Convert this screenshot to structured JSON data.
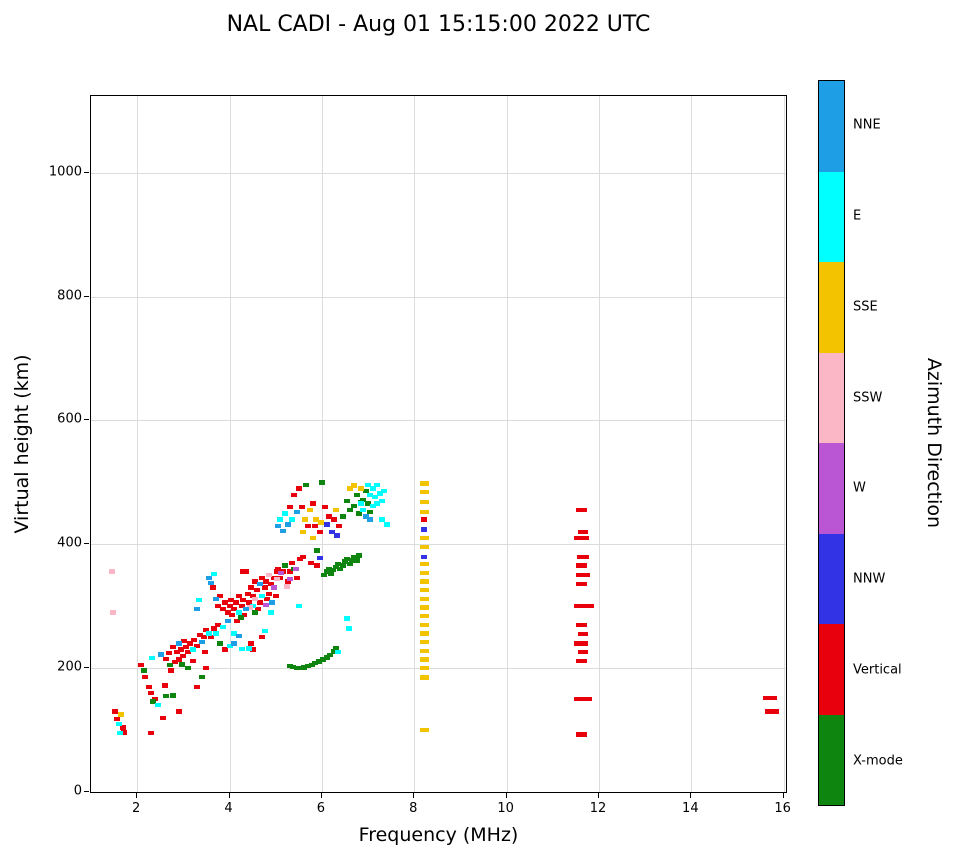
{
  "title": "NAL CADI - Aug 01 15:15:00 2022 UTC",
  "chart_data": {
    "type": "scatter",
    "title": "NAL CADI - Aug 01 15:15:00 2022 UTC",
    "xlabel": "Frequency (MHz)",
    "ylabel": "Virtual height (km)",
    "colorbar_label": "Azimuth Direction",
    "xlim": [
      1.0,
      16.05
    ],
    "ylim": [
      0,
      1124
    ],
    "xticks": [
      2,
      4,
      6,
      8,
      10,
      12,
      14,
      16
    ],
    "yticks": [
      0,
      200,
      400,
      600,
      800,
      1000
    ],
    "grid": true,
    "legend_position": "right-colorbar",
    "marker": {
      "w": 0.13,
      "h": 7
    },
    "categories": [
      {
        "name": "NNE",
        "color": "#1E9EE5"
      },
      {
        "name": "E",
        "color": "#00FFFF"
      },
      {
        "name": "SSE",
        "color": "#F3C300"
      },
      {
        "name": "SSW",
        "color": "#FBB7C5"
      },
      {
        "name": "W",
        "color": "#BA55D3"
      },
      {
        "name": "NNW",
        "color": "#3333E6"
      },
      {
        "name": "Vertical",
        "color": "#E8000D"
      },
      {
        "name": "X-mode",
        "color": "#0E850E"
      }
    ],
    "series": [
      {
        "name": "Vertical",
        "points": [
          [
            1.52,
            130
          ],
          [
            1.56,
            118
          ],
          [
            1.7,
            104
          ],
          [
            1.72,
            96
          ],
          [
            2.08,
            205
          ],
          [
            2.18,
            186
          ],
          [
            2.26,
            170
          ],
          [
            2.3,
            160
          ],
          [
            2.3,
            95
          ],
          [
            2.38,
            150
          ],
          [
            2.55,
            120
          ],
          [
            2.6,
            172
          ],
          [
            2.62,
            215
          ],
          [
            2.68,
            224
          ],
          [
            2.74,
            196
          ],
          [
            2.78,
            234
          ],
          [
            2.82,
            210
          ],
          [
            2.86,
            226
          ],
          [
            2.9,
            214
          ],
          [
            2.9,
            130
          ],
          [
            2.95,
            230
          ],
          [
            3.0,
            220
          ],
          [
            3.02,
            244
          ],
          [
            3.06,
            234
          ],
          [
            3.1,
            226
          ],
          [
            3.14,
            240
          ],
          [
            3.2,
            212
          ],
          [
            3.24,
            246
          ],
          [
            3.3,
            236
          ],
          [
            3.3,
            170
          ],
          [
            3.36,
            254
          ],
          [
            3.44,
            250
          ],
          [
            3.46,
            226
          ],
          [
            3.5,
            262
          ],
          [
            3.5,
            200
          ],
          [
            3.6,
            250
          ],
          [
            3.64,
            330
          ],
          [
            3.66,
            264
          ],
          [
            3.74,
            300
          ],
          [
            3.76,
            270
          ],
          [
            3.8,
            316
          ],
          [
            3.86,
            296
          ],
          [
            3.9,
            306
          ],
          [
            3.9,
            230
          ],
          [
            3.96,
            290
          ],
          [
            4.0,
            300
          ],
          [
            4.04,
            310
          ],
          [
            4.06,
            286
          ],
          [
            4.1,
            296
          ],
          [
            4.14,
            306
          ],
          [
            4.16,
            276
          ],
          [
            4.2,
            316
          ],
          [
            4.26,
            300
          ],
          [
            4.3,
            310
          ],
          [
            4.3,
            356
          ],
          [
            4.32,
            286
          ],
          [
            4.36,
            356
          ],
          [
            4.4,
            320
          ],
          [
            4.42,
            306
          ],
          [
            4.46,
            330
          ],
          [
            4.46,
            240
          ],
          [
            4.5,
            316
          ],
          [
            4.5,
            230
          ],
          [
            4.56,
            340
          ],
          [
            4.6,
            326
          ],
          [
            4.62,
            296
          ],
          [
            4.66,
            306
          ],
          [
            4.7,
            346
          ],
          [
            4.7,
            250
          ],
          [
            4.76,
            330
          ],
          [
            4.8,
            340
          ],
          [
            4.82,
            312
          ],
          [
            4.86,
            320
          ],
          [
            4.9,
            336
          ],
          [
            4.96,
            346
          ],
          [
            5.0,
            316
          ],
          [
            5.02,
            356
          ],
          [
            5.06,
            360
          ],
          [
            5.1,
            346
          ],
          [
            5.16,
            356
          ],
          [
            5.26,
            340
          ],
          [
            5.3,
            460
          ],
          [
            5.32,
            356
          ],
          [
            5.36,
            370
          ],
          [
            5.4,
            480
          ],
          [
            5.46,
            346
          ],
          [
            5.5,
            490
          ],
          [
            5.52,
            376
          ],
          [
            5.56,
            460
          ],
          [
            5.6,
            380
          ],
          [
            5.7,
            430
          ],
          [
            5.76,
            370
          ],
          [
            5.8,
            466
          ],
          [
            5.86,
            430
          ],
          [
            5.9,
            366
          ],
          [
            5.96,
            420
          ],
          [
            6.06,
            460
          ],
          [
            6.16,
            445
          ],
          [
            6.26,
            440
          ],
          [
            6.36,
            430
          ],
          [
            8.22,
            440
          ],
          [
            11.62,
            93,
            0.22
          ],
          [
            11.65,
            150,
            0.38
          ],
          [
            11.62,
            212,
            0.25
          ],
          [
            11.65,
            226,
            0.22
          ],
          [
            11.62,
            240,
            0.3
          ],
          [
            11.65,
            255,
            0.22
          ],
          [
            11.62,
            270,
            0.25
          ],
          [
            11.68,
            300,
            0.42
          ],
          [
            11.62,
            336,
            0.25
          ],
          [
            11.65,
            350,
            0.3
          ],
          [
            11.62,
            366,
            0.22
          ],
          [
            11.65,
            380,
            0.25
          ],
          [
            11.62,
            410,
            0.32
          ],
          [
            11.66,
            420,
            0.22
          ],
          [
            11.62,
            455,
            0.22
          ],
          [
            15.7,
            152,
            0.3
          ],
          [
            15.75,
            130,
            0.3
          ]
        ]
      },
      {
        "name": "X-mode",
        "points": [
          [
            2.14,
            196
          ],
          [
            2.34,
            146
          ],
          [
            2.62,
            155
          ],
          [
            2.72,
            205
          ],
          [
            2.78,
            156
          ],
          [
            2.96,
            206
          ],
          [
            3.1,
            200
          ],
          [
            3.4,
            186
          ],
          [
            3.8,
            240
          ],
          [
            4.24,
            282
          ],
          [
            4.56,
            290
          ],
          [
            5.2,
            366
          ],
          [
            5.4,
            360
          ],
          [
            5.3,
            204
          ],
          [
            5.38,
            202
          ],
          [
            5.46,
            200
          ],
          [
            5.54,
            200
          ],
          [
            5.62,
            201
          ],
          [
            5.7,
            203
          ],
          [
            5.78,
            205
          ],
          [
            5.86,
            208
          ],
          [
            5.94,
            211
          ],
          [
            6.02,
            214
          ],
          [
            6.1,
            217
          ],
          [
            6.18,
            221
          ],
          [
            6.26,
            227
          ],
          [
            6.3,
            233
          ],
          [
            6.05,
            350
          ],
          [
            6.1,
            356
          ],
          [
            6.15,
            360
          ],
          [
            6.2,
            352
          ],
          [
            6.25,
            358
          ],
          [
            6.3,
            363
          ],
          [
            6.35,
            368
          ],
          [
            6.4,
            360
          ],
          [
            6.45,
            366
          ],
          [
            6.5,
            372
          ],
          [
            6.55,
            376
          ],
          [
            6.6,
            368
          ],
          [
            6.65,
            374
          ],
          [
            6.7,
            380
          ],
          [
            6.75,
            374
          ],
          [
            6.8,
            382
          ],
          [
            5.65,
            496
          ],
          [
            5.9,
            390
          ],
          [
            6.0,
            500
          ],
          [
            6.45,
            445
          ],
          [
            6.55,
            470
          ],
          [
            6.6,
            455
          ],
          [
            6.7,
            462
          ],
          [
            6.75,
            480
          ],
          [
            6.8,
            450
          ],
          [
            6.85,
            468
          ],
          [
            6.9,
            472
          ],
          [
            6.95,
            486
          ],
          [
            7.0,
            466
          ],
          [
            7.05,
            452
          ]
        ]
      },
      {
        "name": "E",
        "points": [
          [
            1.6,
            110
          ],
          [
            1.62,
            95
          ],
          [
            2.32,
            216
          ],
          [
            2.45,
            140
          ],
          [
            3.2,
            230
          ],
          [
            3.34,
            310
          ],
          [
            3.56,
            256
          ],
          [
            3.66,
            352
          ],
          [
            3.7,
            256
          ],
          [
            3.86,
            266
          ],
          [
            4.0,
            236
          ],
          [
            4.1,
            256
          ],
          [
            4.2,
            290
          ],
          [
            4.26,
            231
          ],
          [
            4.42,
            232
          ],
          [
            4.5,
            300
          ],
          [
            4.7,
            316
          ],
          [
            4.76,
            260
          ],
          [
            4.9,
            290
          ],
          [
            5.1,
            440
          ],
          [
            5.2,
            450
          ],
          [
            5.35,
            440
          ],
          [
            5.5,
            300
          ],
          [
            6.35,
            226
          ],
          [
            6.55,
            280
          ],
          [
            6.58,
            264
          ],
          [
            6.85,
            466
          ],
          [
            6.9,
            455
          ],
          [
            7.0,
            496
          ],
          [
            7.05,
            480
          ],
          [
            7.1,
            490
          ],
          [
            7.1,
            462
          ],
          [
            7.15,
            476
          ],
          [
            7.2,
            466
          ],
          [
            7.2,
            496
          ],
          [
            7.25,
            482
          ],
          [
            7.3,
            470
          ],
          [
            7.3,
            440
          ],
          [
            7.35,
            486
          ],
          [
            7.4,
            432
          ]
        ]
      },
      {
        "name": "SSE",
        "points": [
          [
            1.66,
            125
          ],
          [
            5.58,
            420
          ],
          [
            5.64,
            440
          ],
          [
            5.74,
            455
          ],
          [
            5.8,
            410
          ],
          [
            5.88,
            440
          ],
          [
            5.98,
            435
          ],
          [
            6.3,
            455
          ],
          [
            6.6,
            490
          ],
          [
            6.7,
            495
          ],
          [
            6.85,
            490
          ],
          [
            8.22,
            100,
            0.2
          ],
          [
            8.22,
            185,
            0.2
          ],
          [
            8.22,
            200,
            0.2
          ],
          [
            8.22,
            214,
            0.2
          ],
          [
            8.22,
            228,
            0.2
          ],
          [
            8.22,
            242,
            0.2
          ],
          [
            8.22,
            256,
            0.2
          ],
          [
            8.22,
            270,
            0.2
          ],
          [
            8.22,
            284,
            0.2
          ],
          [
            8.22,
            298,
            0.2
          ],
          [
            8.22,
            312,
            0.2
          ],
          [
            8.22,
            326,
            0.2
          ],
          [
            8.22,
            340,
            0.2
          ],
          [
            8.22,
            354,
            0.2
          ],
          [
            8.22,
            368,
            0.2
          ],
          [
            8.22,
            396,
            0.2
          ],
          [
            8.22,
            410,
            0.2
          ],
          [
            8.22,
            452,
            0.2
          ],
          [
            8.22,
            468,
            0.2
          ],
          [
            8.22,
            484,
            0.2
          ],
          [
            8.22,
            498,
            0.2
          ]
        ]
      },
      {
        "name": "SSW",
        "points": [
          [
            1.45,
            356
          ],
          [
            1.48,
            290
          ],
          [
            4.44,
            298
          ],
          [
            4.56,
            312
          ],
          [
            4.86,
            350
          ],
          [
            5.02,
            344
          ],
          [
            5.24,
            332
          ]
        ]
      },
      {
        "name": "W",
        "points": [
          [
            4.78,
            302
          ],
          [
            4.96,
            330
          ],
          [
            5.12,
            354
          ],
          [
            5.3,
            344
          ],
          [
            5.44,
            360
          ]
        ]
      },
      {
        "name": "NNW",
        "points": [
          [
            5.96,
            378
          ],
          [
            6.1,
            432
          ],
          [
            6.22,
            420
          ],
          [
            6.32,
            414
          ],
          [
            8.22,
            380
          ],
          [
            8.22,
            424
          ]
        ]
      },
      {
        "name": "NNE",
        "points": [
          [
            2.52,
            222
          ],
          [
            2.9,
            240
          ],
          [
            3.3,
            296
          ],
          [
            3.4,
            242
          ],
          [
            3.55,
            346
          ],
          [
            3.6,
            338
          ],
          [
            3.7,
            312
          ],
          [
            3.96,
            276
          ],
          [
            4.1,
            240
          ],
          [
            4.2,
            252
          ],
          [
            4.36,
            296
          ],
          [
            4.66,
            336
          ],
          [
            4.92,
            306
          ],
          [
            5.06,
            430
          ],
          [
            5.16,
            422
          ],
          [
            5.26,
            432
          ],
          [
            5.46,
            452
          ],
          [
            6.95,
            445
          ],
          [
            7.05,
            440
          ]
        ]
      }
    ]
  }
}
